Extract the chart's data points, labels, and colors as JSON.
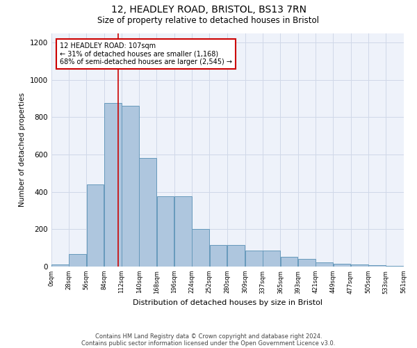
{
  "title1": "12, HEADLEY ROAD, BRISTOL, BS13 7RN",
  "title2": "Size of property relative to detached houses in Bristol",
  "xlabel": "Distribution of detached houses by size in Bristol",
  "ylabel": "Number of detached properties",
  "annotation_line1": "12 HEADLEY ROAD: 107sqm",
  "annotation_line2": "← 31% of detached houses are smaller (1,168)",
  "annotation_line3": "68% of semi-detached houses are larger (2,545) →",
  "property_size_sqm": 107,
  "bin_width": 28,
  "bin_starts": [
    0,
    28,
    56,
    84,
    112,
    140,
    168,
    196,
    224,
    252,
    280,
    309,
    337,
    365,
    393,
    421,
    449,
    477,
    505,
    533
  ],
  "bar_heights": [
    10,
    65,
    440,
    875,
    860,
    580,
    375,
    375,
    200,
    115,
    115,
    85,
    85,
    50,
    40,
    20,
    15,
    12,
    5,
    3
  ],
  "bar_color": "#aec6de",
  "bar_edge_color": "#6699bb",
  "vline_color": "#cc0000",
  "vline_x": 107,
  "annotation_box_edge": "#cc0000",
  "grid_color": "#d0d8e8",
  "background_color": "#eef2fa",
  "ylim": [
    0,
    1250
  ],
  "yticks": [
    0,
    200,
    400,
    600,
    800,
    1000,
    1200
  ],
  "footer1": "Contains HM Land Registry data © Crown copyright and database right 2024.",
  "footer2": "Contains public sector information licensed under the Open Government Licence v3.0."
}
